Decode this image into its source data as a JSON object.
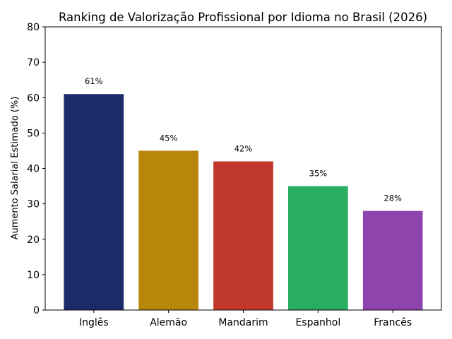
{
  "chart_data": {
    "type": "bar",
    "title": "Ranking de Valorização Profissional por Idioma no Brasil (2026)",
    "xlabel": "",
    "ylabel": "Aumento Salarial Estimado (%)",
    "categories": [
      "Inglês",
      "Alemão",
      "Mandarim",
      "Espanhol",
      "Francês"
    ],
    "values": [
      61,
      45,
      42,
      35,
      28
    ],
    "data_labels": [
      "61%",
      "45%",
      "42%",
      "35%",
      "28%"
    ],
    "colors": [
      "#1b2a6b",
      "#b8860b",
      "#c0392b",
      "#27ae60",
      "#8e44ad"
    ],
    "ylim": [
      0,
      80
    ],
    "yticks": [
      0,
      10,
      20,
      30,
      40,
      50,
      60,
      70,
      80
    ],
    "grid": false
  }
}
